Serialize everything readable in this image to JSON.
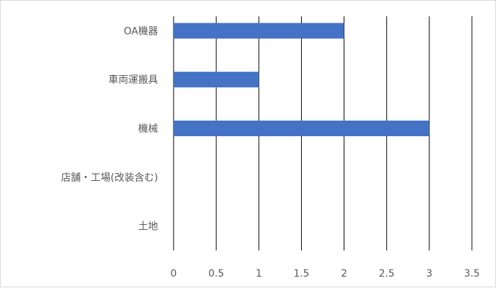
{
  "chart_data": {
    "type": "bar",
    "orientation": "horizontal",
    "categories": [
      "OA機器",
      "車両運搬具",
      "機械",
      "店舗・工場(改装含む)",
      "土地"
    ],
    "values": [
      2,
      1,
      3,
      0,
      0
    ],
    "xlim": [
      0,
      3.5
    ],
    "xticks": [
      "0",
      "0.5",
      "1",
      "1.5",
      "2",
      "2.5",
      "3",
      "3.5"
    ],
    "grid": "vertical",
    "legend": "none",
    "bar_color": "#4472c4",
    "grid_color": "#000000"
  }
}
